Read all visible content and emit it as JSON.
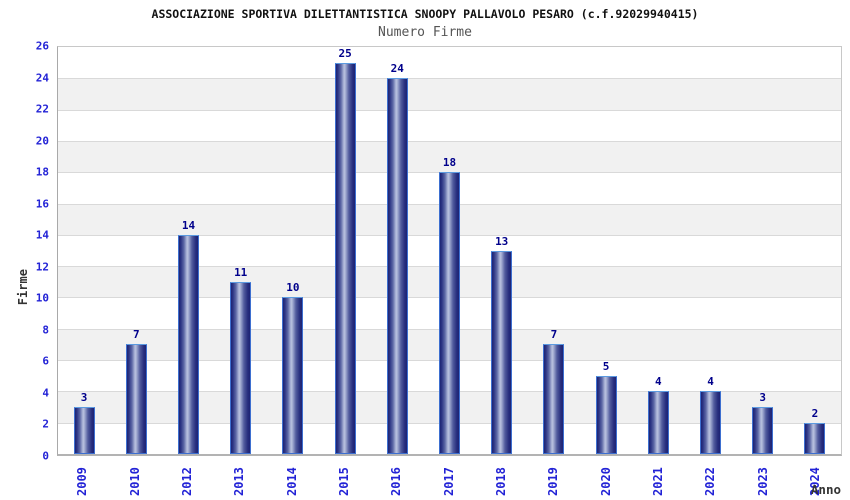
{
  "chart_data": {
    "type": "bar",
    "title": "ASSOCIAZIONE SPORTIVA DILETTANTISTICA SNOOPY PALLAVOLO PESARO (c.f.92029940415)",
    "subtitle": "Numero Firme",
    "xlabel": "Anno",
    "ylabel": "Firme",
    "categories": [
      "2009",
      "2010",
      "2012",
      "2013",
      "2014",
      "2015",
      "2016",
      "2017",
      "2018",
      "2019",
      "2020",
      "2021",
      "2022",
      "2023",
      "2024"
    ],
    "values": [
      3,
      7,
      14,
      11,
      10,
      25,
      24,
      18,
      13,
      7,
      5,
      4,
      4,
      3,
      2
    ],
    "ylim": [
      0,
      26
    ],
    "ytick_step": 2,
    "grid": true,
    "legend": "none",
    "band_colors": [
      "#ffffff",
      "#f1f1f1"
    ],
    "colors": {
      "tick_label": "#2323d6",
      "value_label": "#00008b",
      "bar_dark": "#1d2374",
      "bar_light": "#b9c1de",
      "bar_border": "#3d6fd0",
      "title": "#111111",
      "subtitle": "#555555",
      "axis_title": "#333333",
      "grid_line": "#d9d9d9"
    }
  }
}
